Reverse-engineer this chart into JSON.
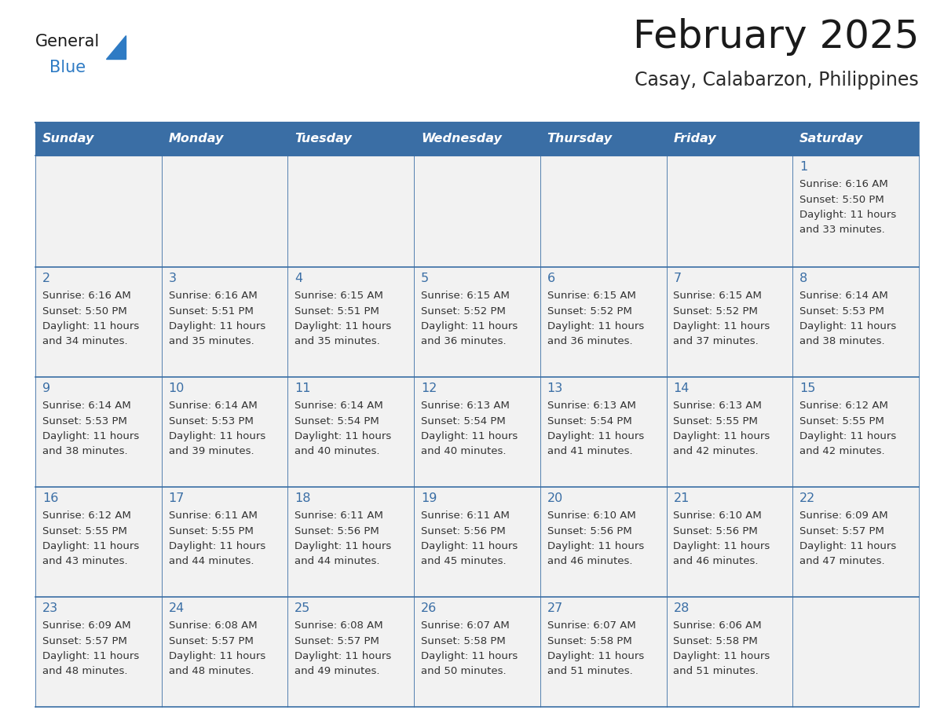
{
  "title": "February 2025",
  "subtitle": "Casay, Calabarzon, Philippines",
  "days_of_week": [
    "Sunday",
    "Monday",
    "Tuesday",
    "Wednesday",
    "Thursday",
    "Friday",
    "Saturday"
  ],
  "header_bg": "#3A6EA5",
  "header_text": "#FFFFFF",
  "cell_bg": "#F2F2F2",
  "cell_border": "#3A6EA5",
  "day_num_color": "#3A6EA5",
  "info_text_color": "#333333",
  "title_color": "#1a1a1a",
  "subtitle_color": "#2a2a2a",
  "calendar": [
    [
      null,
      null,
      null,
      null,
      null,
      null,
      {
        "day": 1,
        "sunrise": "6:16 AM",
        "sunset": "5:50 PM",
        "daylight": "11 hours and 33 minutes."
      }
    ],
    [
      {
        "day": 2,
        "sunrise": "6:16 AM",
        "sunset": "5:50 PM",
        "daylight": "11 hours and 34 minutes."
      },
      {
        "day": 3,
        "sunrise": "6:16 AM",
        "sunset": "5:51 PM",
        "daylight": "11 hours and 35 minutes."
      },
      {
        "day": 4,
        "sunrise": "6:15 AM",
        "sunset": "5:51 PM",
        "daylight": "11 hours and 35 minutes."
      },
      {
        "day": 5,
        "sunrise": "6:15 AM",
        "sunset": "5:52 PM",
        "daylight": "11 hours and 36 minutes."
      },
      {
        "day": 6,
        "sunrise": "6:15 AM",
        "sunset": "5:52 PM",
        "daylight": "11 hours and 36 minutes."
      },
      {
        "day": 7,
        "sunrise": "6:15 AM",
        "sunset": "5:52 PM",
        "daylight": "11 hours and 37 minutes."
      },
      {
        "day": 8,
        "sunrise": "6:14 AM",
        "sunset": "5:53 PM",
        "daylight": "11 hours and 38 minutes."
      }
    ],
    [
      {
        "day": 9,
        "sunrise": "6:14 AM",
        "sunset": "5:53 PM",
        "daylight": "11 hours and 38 minutes."
      },
      {
        "day": 10,
        "sunrise": "6:14 AM",
        "sunset": "5:53 PM",
        "daylight": "11 hours and 39 minutes."
      },
      {
        "day": 11,
        "sunrise": "6:14 AM",
        "sunset": "5:54 PM",
        "daylight": "11 hours and 40 minutes."
      },
      {
        "day": 12,
        "sunrise": "6:13 AM",
        "sunset": "5:54 PM",
        "daylight": "11 hours and 40 minutes."
      },
      {
        "day": 13,
        "sunrise": "6:13 AM",
        "sunset": "5:54 PM",
        "daylight": "11 hours and 41 minutes."
      },
      {
        "day": 14,
        "sunrise": "6:13 AM",
        "sunset": "5:55 PM",
        "daylight": "11 hours and 42 minutes."
      },
      {
        "day": 15,
        "sunrise": "6:12 AM",
        "sunset": "5:55 PM",
        "daylight": "11 hours and 42 minutes."
      }
    ],
    [
      {
        "day": 16,
        "sunrise": "6:12 AM",
        "sunset": "5:55 PM",
        "daylight": "11 hours and 43 minutes."
      },
      {
        "day": 17,
        "sunrise": "6:11 AM",
        "sunset": "5:55 PM",
        "daylight": "11 hours and 44 minutes."
      },
      {
        "day": 18,
        "sunrise": "6:11 AM",
        "sunset": "5:56 PM",
        "daylight": "11 hours and 44 minutes."
      },
      {
        "day": 19,
        "sunrise": "6:11 AM",
        "sunset": "5:56 PM",
        "daylight": "11 hours and 45 minutes."
      },
      {
        "day": 20,
        "sunrise": "6:10 AM",
        "sunset": "5:56 PM",
        "daylight": "11 hours and 46 minutes."
      },
      {
        "day": 21,
        "sunrise": "6:10 AM",
        "sunset": "5:56 PM",
        "daylight": "11 hours and 46 minutes."
      },
      {
        "day": 22,
        "sunrise": "6:09 AM",
        "sunset": "5:57 PM",
        "daylight": "11 hours and 47 minutes."
      }
    ],
    [
      {
        "day": 23,
        "sunrise": "6:09 AM",
        "sunset": "5:57 PM",
        "daylight": "11 hours and 48 minutes."
      },
      {
        "day": 24,
        "sunrise": "6:08 AM",
        "sunset": "5:57 PM",
        "daylight": "11 hours and 48 minutes."
      },
      {
        "day": 25,
        "sunrise": "6:08 AM",
        "sunset": "5:57 PM",
        "daylight": "11 hours and 49 minutes."
      },
      {
        "day": 26,
        "sunrise": "6:07 AM",
        "sunset": "5:58 PM",
        "daylight": "11 hours and 50 minutes."
      },
      {
        "day": 27,
        "sunrise": "6:07 AM",
        "sunset": "5:58 PM",
        "daylight": "11 hours and 51 minutes."
      },
      {
        "day": 28,
        "sunrise": "6:06 AM",
        "sunset": "5:58 PM",
        "daylight": "11 hours and 51 minutes."
      },
      null
    ]
  ],
  "logo_general_color": "#1a1a1a",
  "logo_blue_color": "#2E7BC4",
  "logo_triangle_color": "#2E7BC4",
  "fig_width": 11.88,
  "fig_height": 9.18,
  "dpi": 100
}
